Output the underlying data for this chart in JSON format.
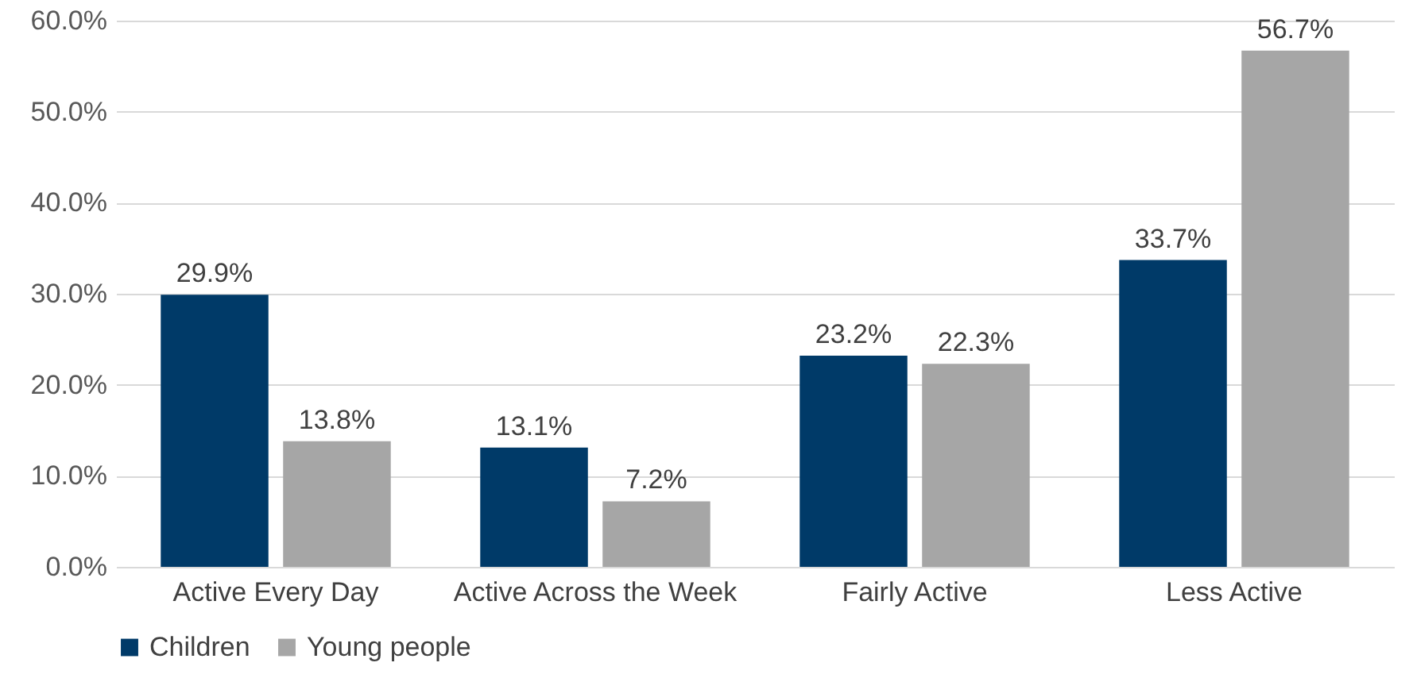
{
  "chart_data": {
    "type": "bar",
    "categories": [
      "Active Every Day",
      "Active Across the Week",
      "Fairly Active",
      "Less Active"
    ],
    "series": [
      {
        "name": "Children",
        "color": "#003a68",
        "values": [
          29.9,
          13.1,
          23.2,
          33.7
        ],
        "value_labels": [
          "29.9%",
          "13.1%",
          "23.2%",
          "33.7%"
        ]
      },
      {
        "name": "Young people",
        "color": "#a6a6a6",
        "values": [
          13.8,
          7.2,
          22.3,
          56.7
        ],
        "value_labels": [
          "13.8%",
          "7.2%",
          "22.3%",
          "56.7%"
        ]
      }
    ],
    "ylim": [
      0,
      60
    ],
    "yticks": [
      {
        "value": 0,
        "label": "0.0%"
      },
      {
        "value": 10,
        "label": "10.0%"
      },
      {
        "value": 20,
        "label": "20.0%"
      },
      {
        "value": 30,
        "label": "30.0%"
      },
      {
        "value": 40,
        "label": "40.0%"
      },
      {
        "value": 50,
        "label": "50.0%"
      },
      {
        "value": 60,
        "label": "60.0%"
      }
    ],
    "grid": "y",
    "legend": "bottom"
  }
}
